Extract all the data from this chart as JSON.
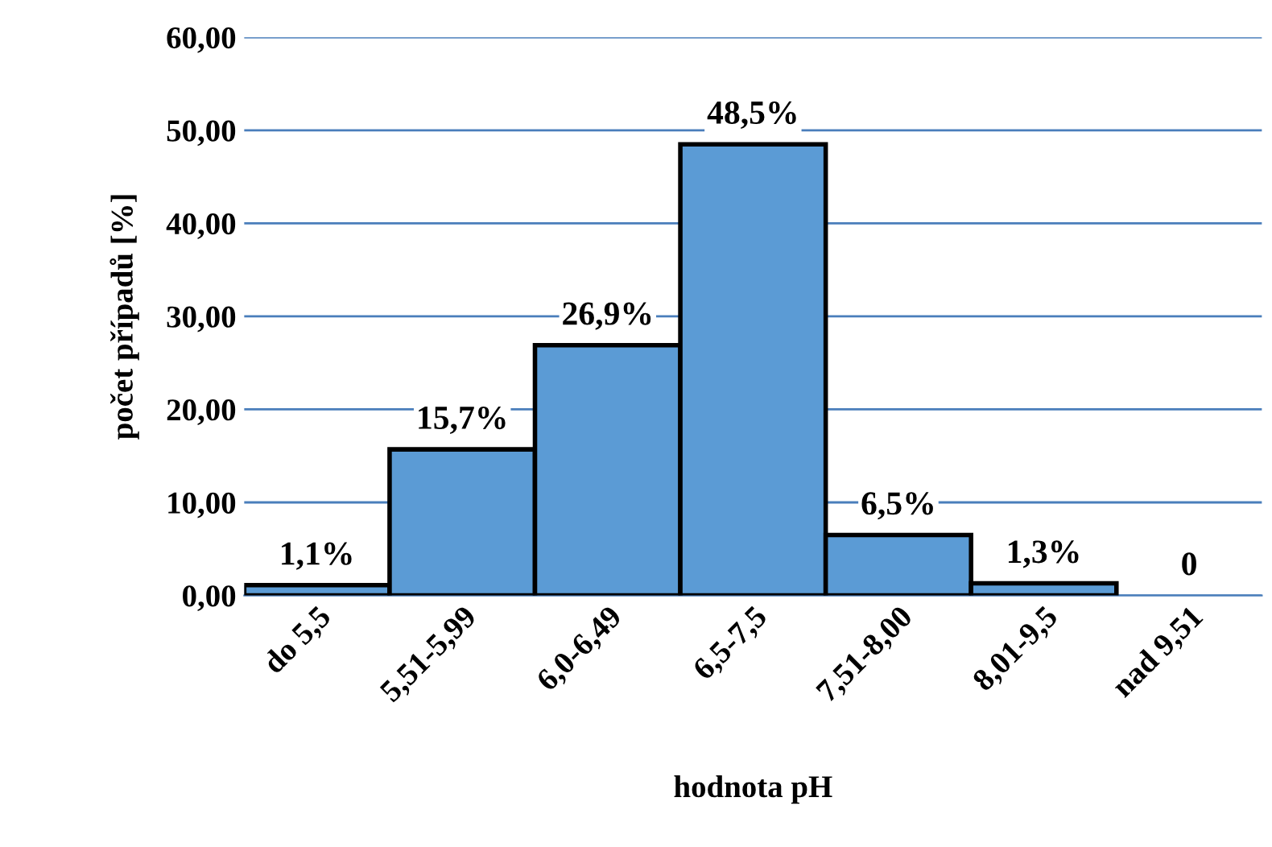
{
  "chart_data": {
    "type": "bar",
    "xlabel": "hodnota pH",
    "ylabel": "počet případů [%]",
    "categories": [
      "do 5,5",
      "5,51-5,99",
      "6,0-6,49",
      "6,5-7,5",
      "7,51-8,00",
      "8,01-9,5",
      "nad 9,51"
    ],
    "values": [
      1.1,
      15.7,
      26.9,
      48.5,
      6.5,
      1.3,
      0
    ],
    "value_labels": [
      "1,1%",
      "15,7%",
      "26,9%",
      "48,5%",
      "6,5%",
      "1,3%",
      "0"
    ],
    "color": "#5b9bd5",
    "ylim": [
      0,
      60
    ],
    "yticks": [
      {
        "value": 0,
        "label": "0,00"
      },
      {
        "value": 10,
        "label": "10,00"
      },
      {
        "value": 20,
        "label": "20,00"
      },
      {
        "value": 30,
        "label": "30,00"
      },
      {
        "value": 40,
        "label": "40,00"
      },
      {
        "value": 50,
        "label": "50,00"
      },
      {
        "value": 60,
        "label": "60,00"
      }
    ],
    "grid": "y",
    "legend": false
  }
}
